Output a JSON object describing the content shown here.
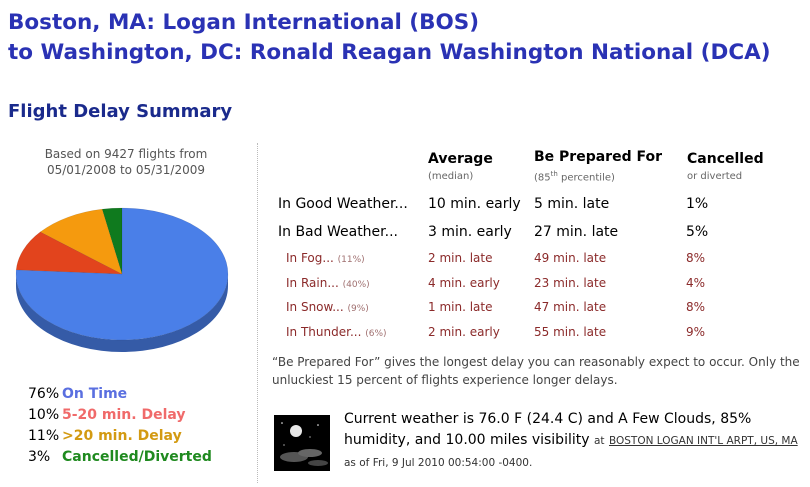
{
  "header": {
    "line1": "Boston, MA: Logan International (BOS)",
    "line2": "to Washington, DC: Ronald Reagan Washington National (DCA)"
  },
  "section_title": "Flight Delay Summary",
  "based_on": {
    "line1": "Based on 9427 flights from",
    "line2": "05/01/2008 to 05/31/2009"
  },
  "chart_data": {
    "type": "pie",
    "title": "",
    "slices": [
      {
        "label": "On Time",
        "value": 76,
        "color": "#4a7fe8"
      },
      {
        "label": "5-20 min. Delay",
        "value": 10,
        "color": "#e2441d"
      },
      {
        "label": ">20 min. Delay",
        "value": 11,
        "color": "#f59a0e"
      },
      {
        "label": "Cancelled/Diverted",
        "value": 3,
        "color": "#0f7a1e"
      }
    ]
  },
  "legend": [
    {
      "pct": "76%",
      "label": "On Time",
      "color": "#5a6fe0"
    },
    {
      "pct": "10%",
      "label": "5-20 min. Delay",
      "color": "#f06a6a"
    },
    {
      "pct": "11%",
      "label": ">20 min. Delay",
      "color": "#d39a12"
    },
    {
      "pct": "3%",
      "label": "Cancelled/Diverted",
      "color": "#1f8a1f"
    }
  ],
  "columns": {
    "average": {
      "title": "Average",
      "sub": "(median)"
    },
    "prepared": {
      "title": "Be Prepared For",
      "sub_pre": "(85",
      "sub_sup": "th",
      "sub_post": " percentile)"
    },
    "cancelled": {
      "title": "Cancelled",
      "sub": "or diverted"
    }
  },
  "rows": [
    {
      "label": "In Good Weather...",
      "freq": "",
      "average": "10 min. early",
      "prepared": "5 min. late",
      "cancelled": "1%",
      "kind": "main"
    },
    {
      "label": "In Bad Weather...",
      "freq": "",
      "average": "3 min. early",
      "prepared": "27 min. late",
      "cancelled": "5%",
      "kind": "main"
    },
    {
      "label": "In Fog...",
      "freq": "(11%)",
      "average": "2 min. late",
      "prepared": "49 min. late",
      "cancelled": "8%",
      "kind": "cond"
    },
    {
      "label": "In Rain...",
      "freq": "(40%)",
      "average": "4 min. early",
      "prepared": "23 min. late",
      "cancelled": "4%",
      "kind": "cond"
    },
    {
      "label": "In Snow...",
      "freq": "(9%)",
      "average": "1 min. late",
      "prepared": "47 min. late",
      "cancelled": "8%",
      "kind": "cond"
    },
    {
      "label": "In Thunder...",
      "freq": "(6%)",
      "average": "2 min. early",
      "prepared": "55 min. late",
      "cancelled": "9%",
      "kind": "cond"
    }
  ],
  "note": "“Be Prepared For” gives the longest delay you can reasonably expect to occur. Only the unluckiest 15 percent of flights experience longer delays.",
  "weather": {
    "text": "Current weather is 76.0 F (24.4 C) and A Few Clouds, 85% humidity, and 10.00 miles visibility",
    "at": "at",
    "station": "BOSTON LOGAN INT'L ARPT, US, MA",
    "asof": "as of Fri, 9 Jul 2010 00:54:00 -0400."
  }
}
